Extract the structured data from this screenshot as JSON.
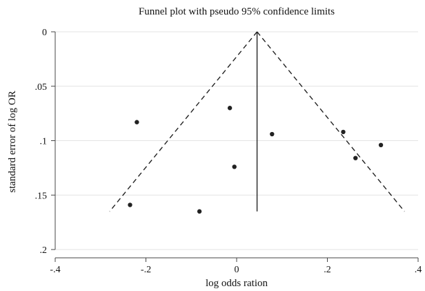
{
  "chart_data": {
    "type": "scatter",
    "title": "Funnel plot with pseudo 95% confidence limits",
    "xlabel": "log odds ration",
    "ylabel": "standard error of log OR",
    "xlim": [
      -0.4,
      0.4
    ],
    "ylim": [
      0,
      0.2
    ],
    "y_reversed": true,
    "grid": true,
    "x_ticks": [
      {
        "value": -0.4,
        "label": "-.4"
      },
      {
        "value": -0.2,
        "label": "-.2"
      },
      {
        "value": 0,
        "label": "0"
      },
      {
        "value": 0.2,
        "label": ".2"
      },
      {
        "value": 0.4,
        "label": ".4"
      }
    ],
    "y_ticks": [
      {
        "value": 0,
        "label": "0"
      },
      {
        "value": 0.05,
        "label": ".05"
      },
      {
        "value": 0.1,
        "label": ".1"
      },
      {
        "value": 0.15,
        "label": ".15"
      },
      {
        "value": 0.2,
        "label": ".2"
      }
    ],
    "pooled_estimate": 0.045,
    "funnel": {
      "apex": [
        0.045,
        0
      ],
      "left_end": [
        -0.28,
        0.165
      ],
      "right_end": [
        0.37,
        0.165
      ]
    },
    "points": [
      {
        "x": -0.22,
        "y": 0.083
      },
      {
        "x": -0.235,
        "y": 0.159
      },
      {
        "x": -0.082,
        "y": 0.165
      },
      {
        "x": -0.015,
        "y": 0.07
      },
      {
        "x": -0.005,
        "y": 0.124
      },
      {
        "x": 0.078,
        "y": 0.094
      },
      {
        "x": 0.235,
        "y": 0.092
      },
      {
        "x": 0.262,
        "y": 0.116
      },
      {
        "x": 0.318,
        "y": 0.104
      }
    ],
    "colors": {
      "marker": "#222222",
      "line": "#222222",
      "grid": "#e3e3e3",
      "axis": "#444444"
    }
  }
}
